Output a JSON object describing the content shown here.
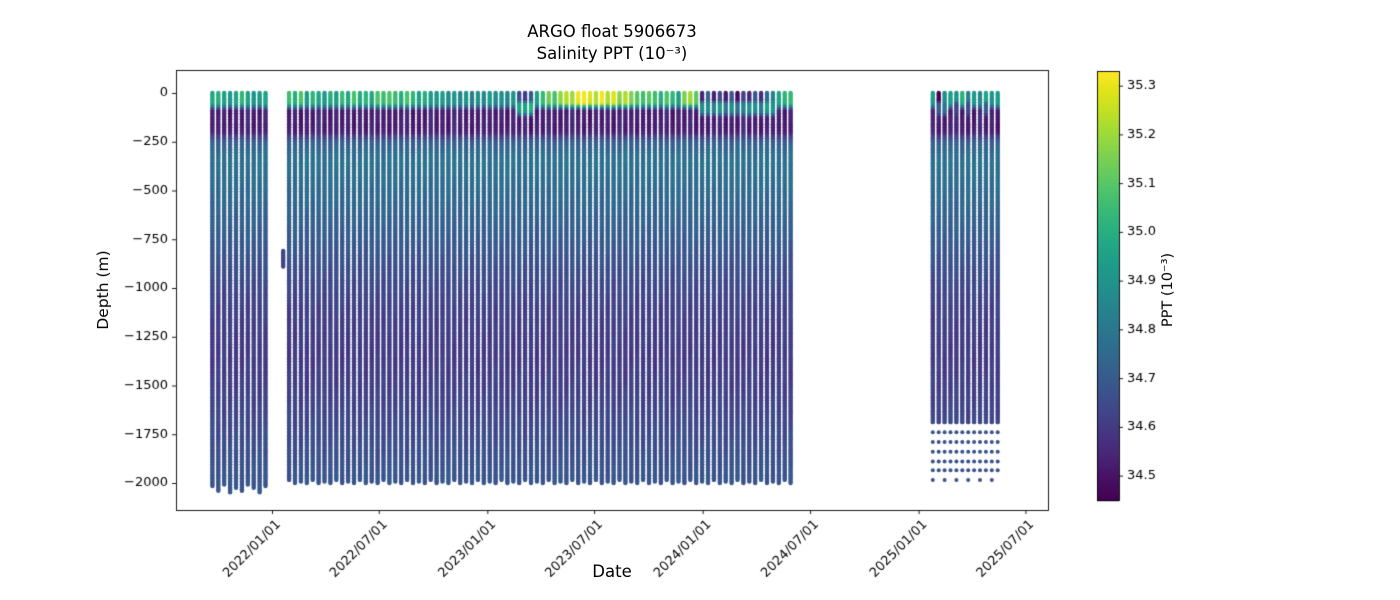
{
  "figure": {
    "title": "ARGO float 5906673",
    "subtitle": "Salinity PPT (10⁻³)",
    "xlabel": "Date",
    "ylabel": "Depth (m)"
  },
  "chart_data": {
    "type": "scatter",
    "title": "ARGO float 5906673",
    "subtitle": "Salinity PPT (10⁻³)",
    "xlabel": "Date",
    "ylabel": "Depth (m)",
    "grid": false,
    "legend": "none",
    "x_ticks": [
      "2022/01/01",
      "2022/07/01",
      "2023/01/01",
      "2023/07/01",
      "2024/01/01",
      "2024/07/01",
      "2025/01/01",
      "2025/07/01"
    ],
    "y_ticks": [
      0,
      -250,
      -500,
      -750,
      -1000,
      -1250,
      -1500,
      -1750,
      -2000
    ],
    "y_tick_labels": [
      "0",
      "−250",
      "−500",
      "−750",
      "−1000",
      "−1250",
      "−1500",
      "−1750",
      "−2000"
    ],
    "ylim_m": [
      -2140,
      120
    ],
    "xlim_dates": [
      "2021-07-22",
      "2025-08-08"
    ],
    "colorbar": {
      "label": "PPT (10⁻³)",
      "ticks": [
        34.5,
        34.6,
        34.7,
        34.8,
        34.9,
        35.0,
        35.1,
        35.2,
        35.3
      ],
      "tick_labels": [
        "34.5",
        "34.6",
        "34.7",
        "34.8",
        "34.9",
        "35.0",
        "35.1",
        "35.2",
        "35.3"
      ],
      "vmin": 34.45,
      "vmax": 35.33,
      "colormap": "viridis",
      "stops": [
        "#440154",
        "#471063",
        "#482475",
        "#463480",
        "#414487",
        "#3b528b",
        "#355f8d",
        "#2f6c8e",
        "#2a788e",
        "#25848e",
        "#21918c",
        "#1e9c89",
        "#22a884",
        "#2fb47c",
        "#44bf70",
        "#5ec962",
        "#7ad151",
        "#9bd93c",
        "#bddf26",
        "#dfe318",
        "#fde725"
      ]
    },
    "profile_fields": [
      "date",
      "surface_ppt",
      "min_layer_ppt",
      "bottom_depth_m",
      "subsurface_band_ppt_optional"
    ],
    "depth_shape": [
      [
        255,
        34.71
      ],
      [
        310,
        34.76
      ],
      [
        360,
        34.78
      ],
      [
        520,
        34.75
      ],
      [
        720,
        34.71
      ],
      [
        900,
        34.66
      ],
      [
        1100,
        34.62
      ],
      [
        1350,
        34.6
      ],
      [
        1550,
        34.62
      ],
      [
        1750,
        34.65
      ],
      [
        1950,
        34.68
      ],
      [
        2100,
        34.69
      ]
    ],
    "profiles_main": [
      [
        "2021-09-22",
        34.97,
        34.53,
        2020
      ],
      [
        "2021-10-02",
        35.0,
        34.52,
        2040
      ],
      [
        "2021-10-12",
        34.95,
        34.54,
        2015
      ],
      [
        "2021-10-22",
        34.92,
        34.52,
        2050
      ],
      [
        "2021-11-01",
        34.98,
        34.53,
        2025
      ],
      [
        "2021-11-11",
        35.02,
        34.52,
        2045
      ],
      [
        "2021-11-21",
        34.96,
        34.55,
        2010
      ],
      [
        "2021-12-01",
        34.9,
        34.53,
        2030
      ],
      [
        "2021-12-11",
        34.94,
        34.52,
        2050
      ],
      [
        "2021-12-21",
        34.97,
        34.54,
        2020
      ],
      [
        "2022-01-30",
        35.05,
        34.52,
        1990
      ],
      [
        "2022-02-09",
        35.0,
        34.53,
        2000
      ],
      [
        "2022-02-19",
        35.08,
        34.52,
        1995
      ],
      [
        "2022-03-01",
        34.95,
        34.54,
        2005
      ],
      [
        "2022-03-11",
        35.02,
        34.52,
        1990
      ],
      [
        "2022-03-21",
        34.97,
        34.55,
        2000
      ],
      [
        "2022-03-31",
        34.92,
        34.53,
        1995
      ],
      [
        "2022-04-10",
        35.0,
        34.52,
        2005
      ],
      [
        "2022-04-20",
        34.96,
        34.54,
        1990
      ],
      [
        "2022-04-30",
        35.04,
        34.52,
        2000
      ],
      [
        "2022-05-10",
        34.98,
        34.53,
        1995
      ],
      [
        "2022-05-20",
        35.06,
        34.52,
        2005
      ],
      [
        "2022-05-30",
        35.0,
        34.55,
        1990
      ],
      [
        "2022-06-09",
        35.03,
        34.52,
        2000
      ],
      [
        "2022-06-19",
        34.97,
        34.53,
        1995
      ],
      [
        "2022-06-29",
        35.08,
        34.52,
        2005
      ],
      [
        "2022-07-09",
        35.04,
        34.54,
        1990
      ],
      [
        "2022-07-19",
        35.1,
        34.52,
        2000
      ],
      [
        "2022-07-29",
        35.05,
        34.53,
        1995
      ],
      [
        "2022-08-08",
        35.0,
        34.52,
        2005
      ],
      [
        "2022-08-18",
        35.07,
        34.55,
        1990
      ],
      [
        "2022-08-28",
        35.02,
        34.52,
        2000
      ],
      [
        "2022-09-07",
        34.97,
        34.53,
        1995
      ],
      [
        "2022-09-17",
        35.0,
        34.52,
        2005
      ],
      [
        "2022-09-27",
        34.94,
        34.54,
        1990
      ],
      [
        "2022-10-07",
        34.9,
        34.52,
        2000
      ],
      [
        "2022-10-17",
        34.95,
        34.53,
        1995
      ],
      [
        "2022-10-27",
        34.88,
        34.52,
        2005
      ],
      [
        "2022-11-06",
        34.92,
        34.55,
        1990
      ],
      [
        "2022-11-16",
        34.86,
        34.52,
        2000
      ],
      [
        "2022-11-26",
        34.9,
        34.53,
        1995
      ],
      [
        "2022-12-06",
        34.85,
        34.52,
        2005
      ],
      [
        "2022-12-16",
        34.9,
        34.54,
        1990
      ],
      [
        "2022-12-26",
        34.87,
        34.52,
        2000
      ],
      [
        "2023-01-05",
        34.92,
        34.53,
        1995
      ],
      [
        "2023-01-15",
        34.86,
        34.52,
        2005
      ],
      [
        "2023-01-25",
        34.9,
        34.54,
        1990
      ],
      [
        "2023-02-04",
        34.85,
        34.52,
        2000
      ],
      [
        "2023-02-14",
        34.92,
        34.53,
        1995
      ],
      [
        "2023-02-24",
        34.65,
        34.52,
        2005,
        34.95
      ],
      [
        "2023-03-06",
        34.6,
        34.55,
        1990,
        34.96
      ],
      [
        "2023-03-16",
        34.7,
        34.52,
        2000,
        35.0
      ],
      [
        "2023-03-26",
        34.96,
        34.53,
        1995
      ],
      [
        "2023-04-05",
        35.05,
        34.52,
        2005
      ],
      [
        "2023-04-15",
        35.12,
        34.54,
        1990
      ],
      [
        "2023-04-25",
        35.08,
        34.52,
        2000
      ],
      [
        "2023-05-05",
        35.18,
        34.53,
        1995
      ],
      [
        "2023-05-15",
        35.25,
        34.52,
        2005
      ],
      [
        "2023-05-25",
        35.2,
        34.55,
        1990
      ],
      [
        "2023-06-04",
        35.3,
        34.52,
        2000
      ],
      [
        "2023-06-14",
        35.32,
        34.53,
        1995
      ],
      [
        "2023-06-24",
        35.28,
        34.52,
        2005
      ],
      [
        "2023-07-04",
        35.25,
        34.54,
        1990
      ],
      [
        "2023-07-14",
        35.3,
        34.52,
        2000
      ],
      [
        "2023-07-24",
        35.22,
        34.53,
        1995
      ],
      [
        "2023-08-03",
        35.28,
        34.52,
        2005
      ],
      [
        "2023-08-13",
        35.18,
        34.55,
        1990
      ],
      [
        "2023-08-23",
        35.24,
        34.52,
        2000
      ],
      [
        "2023-09-02",
        35.15,
        34.53,
        1995
      ],
      [
        "2023-09-12",
        35.1,
        34.52,
        2005
      ],
      [
        "2023-09-22",
        35.05,
        34.54,
        1990
      ],
      [
        "2023-10-02",
        35.12,
        34.52,
        2000
      ],
      [
        "2023-10-12",
        35.06,
        34.53,
        1995
      ],
      [
        "2023-10-22",
        35.0,
        34.52,
        2005
      ],
      [
        "2023-11-01",
        35.08,
        34.55,
        1990
      ],
      [
        "2023-11-11",
        35.02,
        34.52,
        2000
      ],
      [
        "2023-11-21",
        34.96,
        34.53,
        1995
      ],
      [
        "2023-12-01",
        35.15,
        34.52,
        2005
      ],
      [
        "2023-12-11",
        35.2,
        34.53,
        1990
      ],
      [
        "2023-12-21",
        35.1,
        34.52,
        2000
      ],
      [
        "2023-12-31",
        34.55,
        34.52,
        1995,
        34.9
      ],
      [
        "2024-01-10",
        34.75,
        34.53,
        2005,
        34.88
      ],
      [
        "2024-01-20",
        34.52,
        34.52,
        1990,
        34.85
      ],
      [
        "2024-01-30",
        34.65,
        34.54,
        2000,
        34.92
      ],
      [
        "2024-02-09",
        34.5,
        34.52,
        1995,
        34.8
      ],
      [
        "2024-02-19",
        34.7,
        34.53,
        2005,
        34.9
      ],
      [
        "2024-02-29",
        34.48,
        34.52,
        1990,
        34.78
      ],
      [
        "2024-03-10",
        34.62,
        34.55,
        2000,
        34.85
      ],
      [
        "2024-03-20",
        34.55,
        34.52,
        1995,
        34.88
      ],
      [
        "2024-03-30",
        34.68,
        34.53,
        2005,
        34.9
      ],
      [
        "2024-04-09",
        34.58,
        34.52,
        1990,
        34.82
      ],
      [
        "2024-04-19",
        34.75,
        34.54,
        2000,
        34.95
      ],
      [
        "2024-04-29",
        34.85,
        34.52,
        1995,
        34.9
      ],
      [
        "2024-05-09",
        34.95,
        34.53,
        2005
      ],
      [
        "2024-05-19",
        35.02,
        34.52,
        1990
      ],
      [
        "2024-05-29",
        35.05,
        34.54,
        2000
      ]
    ],
    "profiles_recent": [
      [
        "2025-01-25",
        34.92,
        34.55,
        1690
      ],
      [
        "2025-02-04",
        34.45,
        34.52,
        1690,
        34.7
      ],
      [
        "2025-02-14",
        34.88,
        34.53,
        1690,
        34.8
      ],
      [
        "2025-02-24",
        34.95,
        34.52,
        1690
      ],
      [
        "2025-03-06",
        34.9,
        34.55,
        1690,
        34.6
      ],
      [
        "2025-03-16",
        35.0,
        34.52,
        1690
      ],
      [
        "2025-03-26",
        34.85,
        34.53,
        1690,
        34.65
      ],
      [
        "2025-04-05",
        34.92,
        34.52,
        1690
      ],
      [
        "2025-04-15",
        34.88,
        34.55,
        1690
      ],
      [
        "2025-04-25",
        34.95,
        34.52,
        1690,
        34.7
      ],
      [
        "2025-05-05",
        34.9,
        34.53,
        1690
      ],
      [
        "2025-05-15",
        34.93,
        34.52,
        1690
      ]
    ],
    "partial_profile": {
      "date": "2022-01-20",
      "top_m": 810,
      "bottom_m": 895,
      "ppt": 34.64
    },
    "recent_deep_dot_depths_m": [
      1740,
      1790,
      1840,
      1890,
      1935,
      1985
    ],
    "recent_deep_dot_ppt": 34.67
  }
}
